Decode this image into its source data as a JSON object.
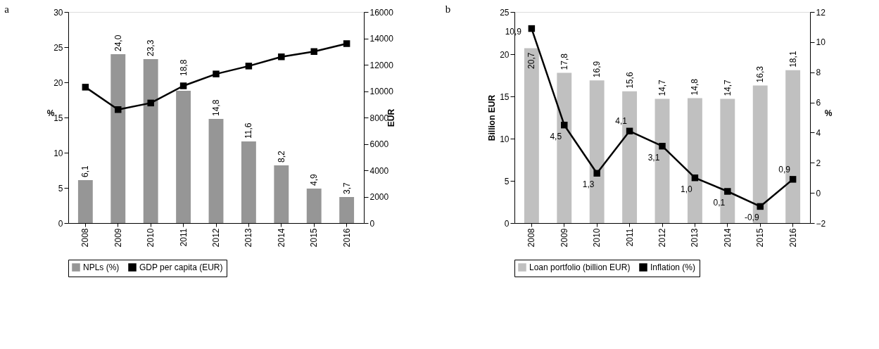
{
  "chart_data": [
    {
      "type": "bar",
      "title": "a",
      "categories": [
        "2008",
        "2009",
        "2010",
        "2011",
        "2012",
        "2013",
        "2014",
        "2015",
        "2016"
      ],
      "ylabel": "%",
      "y2label": "EUR",
      "ylim": [
        0,
        30
      ],
      "yticks": [
        0,
        5,
        10,
        15,
        20,
        25,
        30
      ],
      "y2lim": [
        0,
        16000
      ],
      "y2ticks": [
        0,
        2000,
        4000,
        6000,
        8000,
        10000,
        12000,
        14000,
        16000
      ],
      "legend": "bottom",
      "grid": false,
      "series": [
        {
          "name": "NPLs (%)",
          "color": "#969696",
          "values": [
            6.1,
            24.0,
            23.3,
            18.8,
            14.8,
            11.6,
            8.2,
            4.9,
            3.7
          ],
          "value_labels": [
            "6,1",
            "24,0",
            "23,3",
            "18,8",
            "14,8",
            "11,6",
            "8,2",
            "4,9",
            "3,7"
          ]
        },
        {
          "name": "GDP per capita (EUR)",
          "type": "line",
          "axis": "y2",
          "color": "#000000",
          "marker": "square",
          "line_style": "solid",
          "values": [
            10300,
            8600,
            9100,
            10400,
            11300,
            11900,
            12600,
            13000,
            13600
          ]
        }
      ]
    },
    {
      "type": "bar",
      "title": "b",
      "categories": [
        "2008",
        "2009",
        "2010",
        "2011",
        "2012",
        "2013",
        "2014",
        "2015",
        "2016"
      ],
      "ylabel": "Billion EUR",
      "y2label": "%",
      "ylim": [
        0,
        25
      ],
      "yticks": [
        0,
        5,
        10,
        15,
        20,
        25
      ],
      "y2lim": [
        -2,
        12
      ],
      "y2ticks": [
        -2,
        0,
        2,
        4,
        6,
        8,
        10,
        12
      ],
      "legend": "bottom",
      "grid": false,
      "series": [
        {
          "name": "Loan portfolio (billion EUR)",
          "color": "#c0c0c0",
          "values": [
            20.7,
            17.8,
            16.9,
            15.6,
            14.7,
            14.8,
            14.7,
            16.3,
            18.1
          ],
          "value_labels": [
            "20,7",
            "17,8",
            "16,9",
            "15,6",
            "14,7",
            "14,8",
            "14,7",
            "16,3",
            "18,1"
          ]
        },
        {
          "name": "Inflation (%)",
          "type": "line",
          "axis": "y2",
          "color": "#000000",
          "marker": "square",
          "line_style": "solid",
          "values": [
            10.9,
            4.5,
            1.3,
            4.1,
            3.1,
            1.0,
            0.1,
            -0.9,
            0.9
          ],
          "value_labels": [
            "10,9",
            "4,5",
            "1,3",
            "4,1",
            "3,1",
            "1,0",
            "0,1",
            "-0,9",
            "0,9"
          ]
        }
      ]
    }
  ]
}
